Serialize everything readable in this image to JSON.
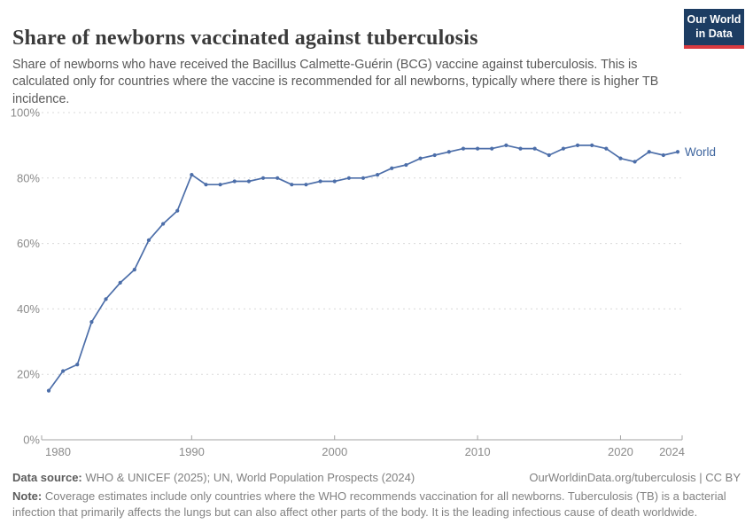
{
  "header": {
    "title": "Share of newborns vaccinated against tuberculosis",
    "subtitle": "Share of newborns who have received the Bacillus Calmette-Guérin (BCG) vaccine against tuberculosis. This is calculated only for countries where the vaccine is recommended for all newborns, typically where there is higher TB incidence.",
    "logo": {
      "line1": "Our World",
      "line2": "in Data",
      "bg_color": "#1d3d63",
      "accent_color": "#d93a40"
    }
  },
  "chart_data": {
    "type": "line",
    "title": "Share of newborns vaccinated against tuberculosis",
    "xlabel": "",
    "ylabel": "",
    "xlim": [
      1980,
      2024
    ],
    "ylim": [
      0,
      100
    ],
    "grid": "dashed-horizontal",
    "legend_position": "end-of-line-label",
    "line_color": "#4c6ea9",
    "label_color": "#3d649e",
    "yticks": [
      {
        "value": 0,
        "label": "0%"
      },
      {
        "value": 20,
        "label": "20%"
      },
      {
        "value": 40,
        "label": "40%"
      },
      {
        "value": 60,
        "label": "60%"
      },
      {
        "value": 80,
        "label": "80%"
      },
      {
        "value": 100,
        "label": "100%"
      }
    ],
    "xticks": [
      {
        "value": 1980,
        "label": "1980"
      },
      {
        "value": 1990,
        "label": "1990"
      },
      {
        "value": 2000,
        "label": "2000"
      },
      {
        "value": 2010,
        "label": "2010"
      },
      {
        "value": 2020,
        "label": "2020"
      },
      {
        "value": 2024,
        "label": "2024"
      }
    ],
    "series": [
      {
        "name": "World",
        "color": "#4c6ea9",
        "x": [
          1980,
          1981,
          1982,
          1983,
          1984,
          1985,
          1986,
          1987,
          1988,
          1989,
          1990,
          1991,
          1992,
          1993,
          1994,
          1995,
          1996,
          1997,
          1998,
          1999,
          2000,
          2001,
          2002,
          2003,
          2004,
          2005,
          2006,
          2007,
          2008,
          2009,
          2010,
          2011,
          2012,
          2013,
          2014,
          2015,
          2016,
          2017,
          2018,
          2019,
          2020,
          2021,
          2022,
          2023,
          2024
        ],
        "values": [
          15,
          21,
          23,
          36,
          43,
          48,
          52,
          61,
          66,
          70,
          81,
          78,
          78,
          79,
          79,
          80,
          80,
          78,
          78,
          79,
          79,
          80,
          80,
          81,
          83,
          84,
          86,
          87,
          88,
          89,
          89,
          89,
          90,
          89,
          89,
          87,
          89,
          90,
          90,
          89,
          86,
          85,
          88,
          87,
          88
        ]
      }
    ]
  },
  "footer": {
    "datasource_label": "Data source:",
    "datasource_text": " WHO & UNICEF (2025); UN, World Population Prospects (2024)",
    "rights_text": "OurWorldinData.org/tuberculosis | CC BY",
    "note_label": "Note:",
    "note_text": " Coverage estimates include only countries where the WHO recommends vaccination for all newborns. Tuberculosis (TB) is a bacterial infection that primarily affects the lungs but can also affect other parts of the body. It is the leading infectious cause of death worldwide."
  }
}
